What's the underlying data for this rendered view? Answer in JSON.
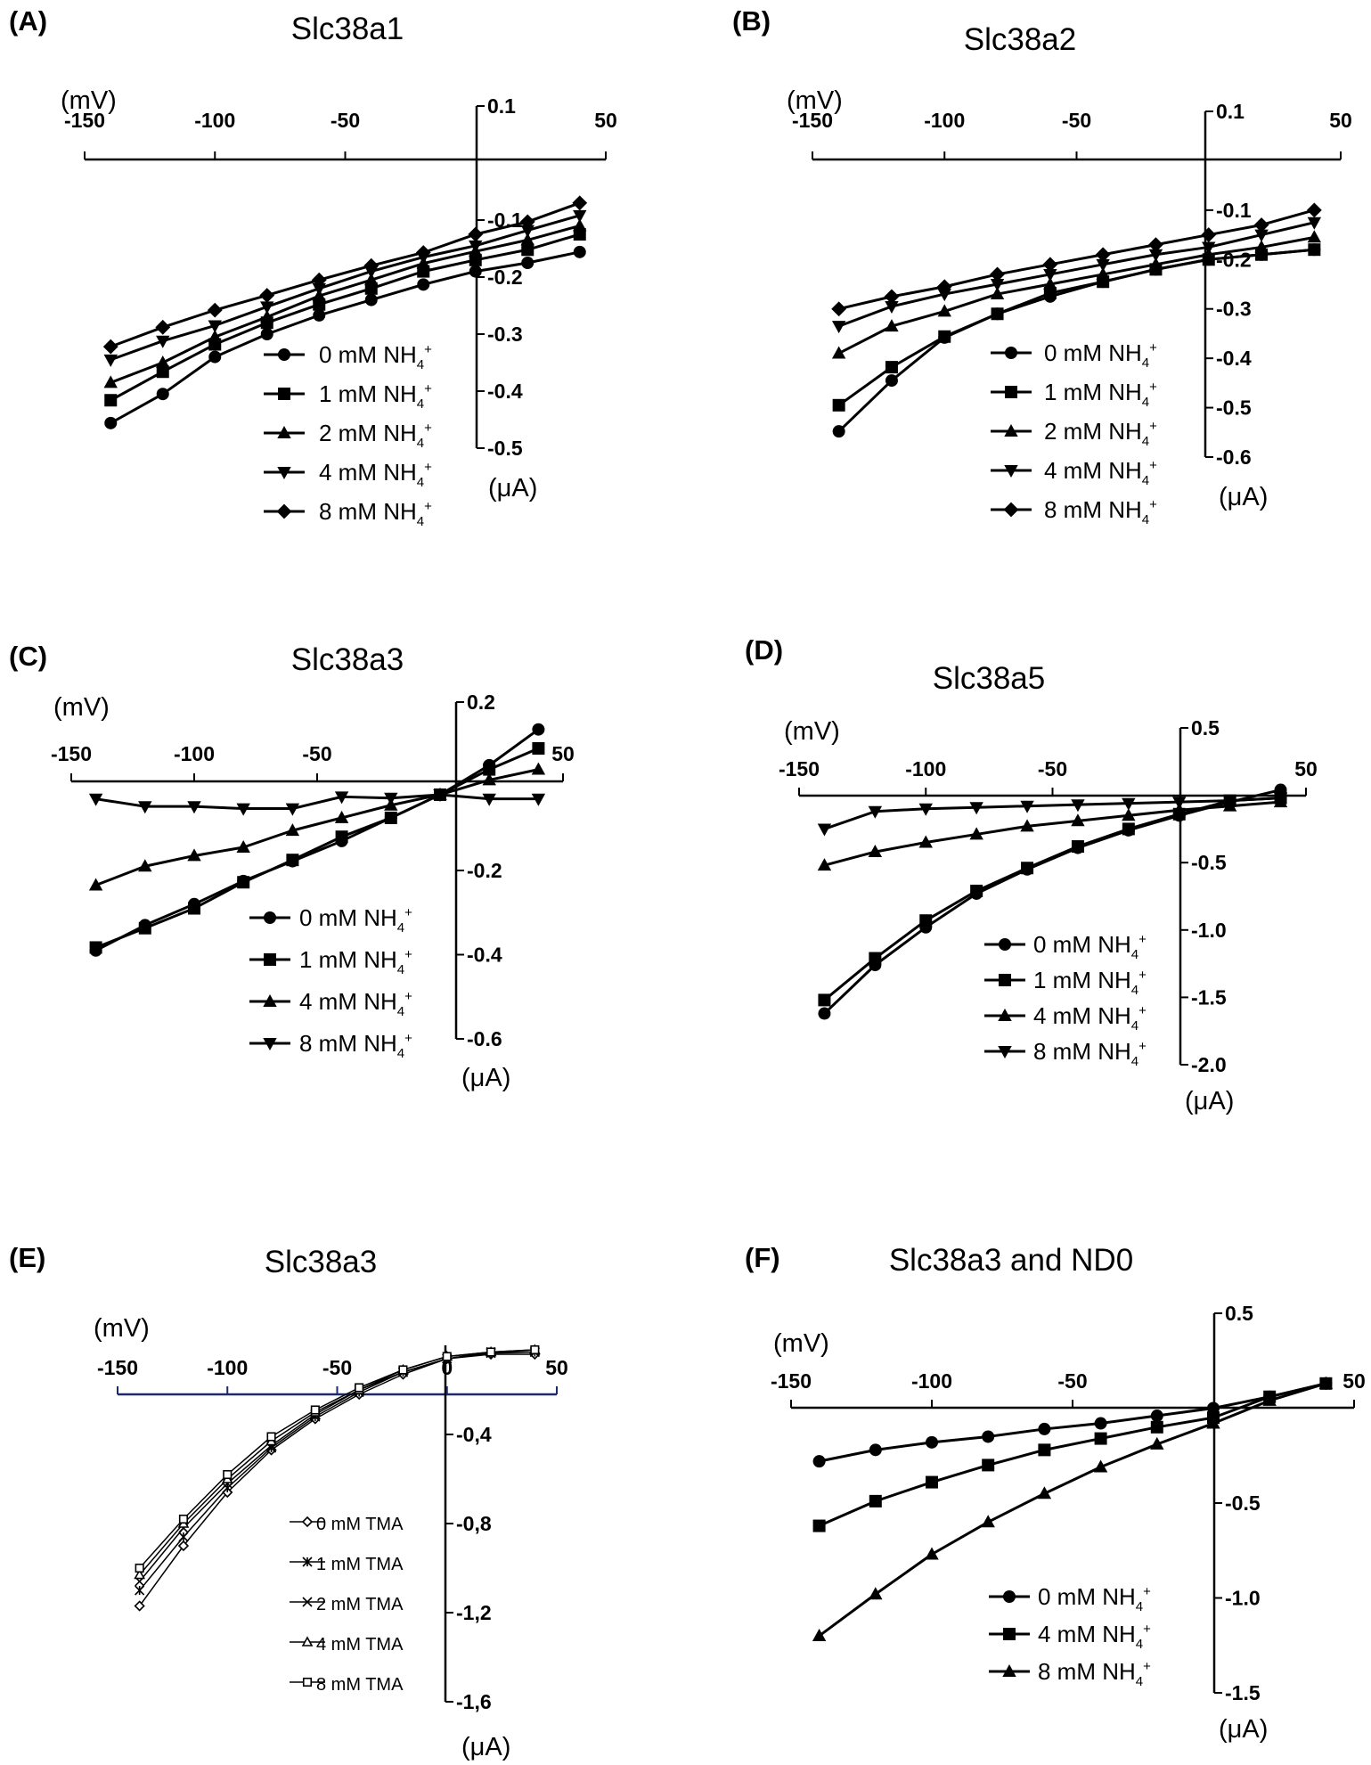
{
  "chart_data": [
    {
      "panel": "(A)",
      "title": "Slc38a1",
      "type": "line",
      "xlabel": "(mV)",
      "ylabel": "(μA)",
      "xlim": [
        -150,
        50
      ],
      "ylim": [
        -0.5,
        0.1
      ],
      "xticks": [
        "-150",
        "-100",
        "-50",
        "50"
      ],
      "yticks": [
        "0.1",
        "-0.1",
        "-0.2",
        "-0.3",
        "-0.4",
        "-0.5"
      ],
      "x": [
        -140,
        -120,
        -100,
        -80,
        -60,
        -40,
        -20,
        0,
        20,
        40
      ],
      "series": [
        {
          "name": "0 mM NH4+",
          "marker": "circle",
          "values": [
            -0.456,
            -0.405,
            -0.34,
            -0.3,
            -0.267,
            -0.24,
            -0.213,
            -0.19,
            -0.175,
            -0.156
          ]
        },
        {
          "name": "1 mM NH4+",
          "marker": "square",
          "values": [
            -0.416,
            -0.366,
            -0.318,
            -0.28,
            -0.248,
            -0.22,
            -0.19,
            -0.17,
            -0.152,
            -0.125
          ]
        },
        {
          "name": "2 mM NH4+",
          "marker": "triangle-up",
          "values": [
            -0.385,
            -0.35,
            -0.305,
            -0.27,
            -0.233,
            -0.205,
            -0.176,
            -0.155,
            -0.135,
            -0.11
          ]
        },
        {
          "name": "4 mM NH4+",
          "marker": "triangle-down",
          "values": [
            -0.345,
            -0.312,
            -0.285,
            -0.252,
            -0.22,
            -0.19,
            -0.165,
            -0.145,
            -0.118,
            -0.092
          ]
        },
        {
          "name": "8 mM NH4+",
          "marker": "diamond",
          "values": [
            -0.322,
            -0.288,
            -0.258,
            -0.232,
            -0.205,
            -0.18,
            -0.157,
            -0.125,
            -0.103,
            -0.07
          ]
        }
      ],
      "legend": {
        "labels": [
          "0 mM NH",
          "1 mM NH",
          "2 mM NH",
          "4 mM NH",
          "8 mM NH"
        ],
        "sub": "4",
        "sup": "+"
      }
    },
    {
      "panel": "(B)",
      "title": "Slc38a2",
      "type": "line",
      "xlabel": "(mV)",
      "ylabel": "(μA)",
      "xlim": [
        -150,
        50
      ],
      "ylim": [
        -0.6,
        0.1
      ],
      "xticks": [
        "-150",
        "-100",
        "-50",
        "50"
      ],
      "yticks": [
        "0.1",
        "-0.1",
        "-0.2",
        "-0.3",
        "-0.4",
        "-0.5",
        "-0.6"
      ],
      "x": [
        -140,
        -120,
        -100,
        -80,
        -60,
        -40,
        -20,
        0,
        20,
        40
      ],
      "series": [
        {
          "name": "0 mM NH4+",
          "marker": "circle",
          "values": [
            -0.548,
            -0.445,
            -0.358,
            -0.31,
            -0.275,
            -0.245,
            -0.22,
            -0.2,
            -0.19,
            -0.18
          ]
        },
        {
          "name": "1 mM NH4+",
          "marker": "square",
          "values": [
            -0.495,
            -0.418,
            -0.356,
            -0.31,
            -0.268,
            -0.245,
            -0.22,
            -0.2,
            -0.19,
            -0.18
          ]
        },
        {
          "name": "2 mM NH4+",
          "marker": "triangle-up",
          "values": [
            -0.39,
            -0.335,
            -0.305,
            -0.27,
            -0.25,
            -0.23,
            -0.21,
            -0.19,
            -0.175,
            -0.155
          ]
        },
        {
          "name": "4 mM NH4+",
          "marker": "triangle-down",
          "values": [
            -0.335,
            -0.295,
            -0.27,
            -0.25,
            -0.23,
            -0.21,
            -0.19,
            -0.175,
            -0.15,
            -0.125
          ]
        },
        {
          "name": "8 mM NH4+",
          "marker": "diamond",
          "values": [
            -0.3,
            -0.275,
            -0.255,
            -0.23,
            -0.21,
            -0.19,
            -0.17,
            -0.15,
            -0.13,
            -0.1
          ]
        }
      ],
      "legend": {
        "labels": [
          "0 mM NH",
          "1 mM NH",
          "2 mM NH",
          "4 mM NH",
          "8 mM NH"
        ],
        "sub": "4",
        "sup": "+"
      }
    },
    {
      "panel": "(C)",
      "title": "Slc38a3",
      "type": "line",
      "xlabel": "(mV)",
      "ylabel": "(μA)",
      "xlim": [
        -150,
        50
      ],
      "ylim": [
        -0.6,
        0.2
      ],
      "xticks": [
        "-150",
        "-100",
        "-50",
        "50"
      ],
      "yticks": [
        "0.2",
        "-0.2",
        "-0.4",
        "-0.6"
      ],
      "x": [
        -140,
        -120,
        -100,
        -80,
        -60,
        -40,
        -20,
        0,
        20,
        40
      ],
      "series": [
        {
          "name": "0 mM NH4+",
          "marker": "circle",
          "values": [
            -0.39,
            -0.33,
            -0.28,
            -0.225,
            -0.178,
            -0.13,
            -0.075,
            -0.02,
            0.05,
            0.135
          ]
        },
        {
          "name": "1 mM NH4+",
          "marker": "square",
          "values": [
            -0.383,
            -0.337,
            -0.29,
            -0.228,
            -0.175,
            -0.12,
            -0.075,
            -0.02,
            0.04,
            0.09
          ]
        },
        {
          "name": "4 mM NH4+",
          "marker": "triangle-up",
          "values": [
            -0.235,
            -0.19,
            -0.165,
            -0.145,
            -0.105,
            -0.075,
            -0.045,
            -0.02,
            0.015,
            0.04
          ]
        },
        {
          "name": "8 mM NH4+",
          "marker": "triangle-down",
          "values": [
            -0.03,
            -0.048,
            -0.048,
            -0.053,
            -0.053,
            -0.025,
            -0.028,
            -0.02,
            -0.03,
            -0.03
          ]
        }
      ],
      "legend": {
        "labels": [
          "0 mM NH",
          "1 mM NH",
          "4 mM NH",
          "8 mM NH"
        ],
        "sub": "4",
        "sup": "+"
      }
    },
    {
      "panel": "(D)",
      "title": "Slc38a5",
      "type": "line",
      "xlabel": "(mV)",
      "ylabel": "(μA)",
      "xlim": [
        -150,
        50
      ],
      "ylim": [
        -2.0,
        0.5
      ],
      "xticks": [
        "-150",
        "-100",
        "-50",
        "50"
      ],
      "yticks": [
        "0.5",
        "-0.5",
        "-1.0",
        "-1.5",
        "-2.0"
      ],
      "x": [
        -140,
        -120,
        -100,
        -80,
        -60,
        -40,
        -20,
        0,
        20,
        40
      ],
      "series": [
        {
          "name": "0 mM NH4+",
          "marker": "circle",
          "values": [
            -1.62,
            -1.26,
            -0.98,
            -0.73,
            -0.55,
            -0.39,
            -0.26,
            -0.15,
            -0.05,
            0.04
          ]
        },
        {
          "name": "1 mM NH4+",
          "marker": "square",
          "values": [
            -1.52,
            -1.21,
            -0.93,
            -0.71,
            -0.54,
            -0.38,
            -0.25,
            -0.14,
            -0.04,
            -0.02
          ]
        },
        {
          "name": "4 mM NH4+",
          "marker": "triangle-up",
          "values": [
            -0.52,
            -0.42,
            -0.35,
            -0.29,
            -0.23,
            -0.19,
            -0.15,
            -0.11,
            -0.08,
            -0.05
          ]
        },
        {
          "name": "8 mM NH4+",
          "marker": "triangle-down",
          "values": [
            -0.25,
            -0.12,
            -0.1,
            -0.09,
            -0.08,
            -0.07,
            -0.06,
            -0.05,
            -0.04,
            -0.02
          ]
        }
      ],
      "legend": {
        "labels": [
          "0 mM NH",
          "1 mM NH",
          "4 mM NH",
          "8 mM NH"
        ],
        "sub": "4",
        "sup": "+"
      }
    },
    {
      "panel": "(E)",
      "title": "Slc38a3",
      "type": "line",
      "xlabel": "(mV)",
      "ylabel": "(μA)",
      "xlim": [
        -150,
        50
      ],
      "ylim": [
        -1.6,
        0
      ],
      "xticks": [
        "-150",
        "-100",
        "-50",
        "0",
        "50"
      ],
      "yticks": [
        "-0,4",
        "-0,8",
        "-1,2",
        "-1,6"
      ],
      "x": [
        -140,
        -120,
        -100,
        -80,
        -60,
        -40,
        -20,
        0,
        20,
        40
      ],
      "series": [
        {
          "name": "0 mM TMA",
          "marker": "open-diamond",
          "values": [
            -1.17,
            -0.9,
            -0.66,
            -0.47,
            -0.33,
            -0.22,
            -0.13,
            -0.06,
            -0.04,
            -0.04
          ]
        },
        {
          "name": "1 mM TMA",
          "marker": "asterisk",
          "values": [
            -1.1,
            -0.86,
            -0.64,
            -0.46,
            -0.32,
            -0.21,
            -0.12,
            -0.06,
            -0.035,
            -0.03
          ]
        },
        {
          "name": "2 mM TMA",
          "marker": "cross",
          "values": [
            -1.06,
            -0.82,
            -0.62,
            -0.45,
            -0.31,
            -0.2,
            -0.12,
            -0.06,
            -0.03,
            -0.03
          ]
        },
        {
          "name": "4 mM TMA",
          "marker": "open-triangle",
          "values": [
            -1.03,
            -0.8,
            -0.6,
            -0.43,
            -0.3,
            -0.2,
            -0.11,
            -0.05,
            -0.03,
            -0.02
          ]
        },
        {
          "name": "8 mM TMA",
          "marker": "open-square",
          "values": [
            -1.0,
            -0.78,
            -0.58,
            -0.41,
            -0.29,
            -0.19,
            -0.11,
            -0.05,
            -0.03,
            -0.02
          ]
        }
      ],
      "legend": {
        "labels": [
          "0 mM TMA",
          "1 mM TMA",
          "2 mM TMA",
          "4 mM TMA",
          "8 mM TMA"
        ]
      }
    },
    {
      "panel": "(F)",
      "title": "Slc38a3 and ND0",
      "type": "line",
      "xlabel": "(mV)",
      "ylabel": "(μA)",
      "xlim": [
        -150,
        50
      ],
      "ylim": [
        -1.5,
        0.5
      ],
      "xticks": [
        "-150",
        "-100",
        "-50",
        "50"
      ],
      "yticks": [
        "0.5",
        "-0.5",
        "-1.0",
        "-1.5"
      ],
      "x": [
        -140,
        -120,
        -100,
        -80,
        -60,
        -40,
        -20,
        0,
        20,
        40
      ],
      "series": [
        {
          "name": "0 mM NH4+",
          "marker": "circle",
          "values": [
            -0.28,
            -0.22,
            -0.18,
            -0.15,
            -0.11,
            -0.08,
            -0.04,
            0.0,
            0.06,
            0.13
          ]
        },
        {
          "name": "4 mM NH4+",
          "marker": "square",
          "values": [
            -0.62,
            -0.49,
            -0.39,
            -0.3,
            -0.22,
            -0.16,
            -0.1,
            -0.05,
            0.06,
            0.13
          ]
        },
        {
          "name": "8 mM NH4+",
          "marker": "triangle-up",
          "values": [
            -1.2,
            -0.98,
            -0.77,
            -0.6,
            -0.45,
            -0.31,
            -0.19,
            -0.08,
            0.04,
            0.13
          ]
        }
      ],
      "legend": {
        "labels": [
          "0 mM NH",
          "4 mM NH",
          "8 mM NH"
        ],
        "sub": "4",
        "sup": "+"
      }
    }
  ]
}
